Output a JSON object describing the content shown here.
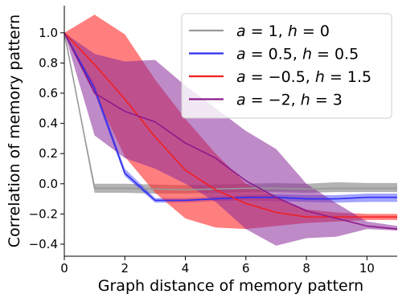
{
  "chart_data": {
    "type": "line",
    "title": "",
    "xlabel": "Graph distance of memory pattern",
    "ylabel": "Correlation of memory pattern",
    "xlim": [
      0,
      11
    ],
    "ylim": [
      -0.48,
      1.18
    ],
    "x_ticks": [
      0,
      2,
      4,
      6,
      8,
      10
    ],
    "y_ticks": [
      1.0,
      0.8,
      0.6,
      0.4,
      0.2,
      0.0,
      -0.2,
      -0.4
    ],
    "grid": false,
    "legend_position": "top-right",
    "x": [
      0,
      1,
      2,
      3,
      4,
      5,
      6,
      7,
      8,
      9,
      10,
      11
    ],
    "series": [
      {
        "name": "a = 1, h = 0",
        "legend_label": {
          "a": "1",
          "h": "0"
        },
        "color": "#999999",
        "band_color": "#808080",
        "band_opacity": 0.6,
        "values": [
          1.0,
          -0.03,
          -0.03,
          -0.035,
          -0.04,
          -0.035,
          -0.03,
          -0.03,
          -0.035,
          -0.03,
          -0.03,
          -0.03
        ],
        "lower": [
          1.0,
          -0.06,
          -0.06,
          -0.065,
          -0.065,
          -0.06,
          -0.055,
          -0.055,
          -0.06,
          -0.055,
          -0.055,
          -0.055
        ],
        "upper": [
          1.0,
          0.0,
          0.0,
          -0.005,
          -0.01,
          -0.005,
          0.0,
          0.005,
          0.0,
          0.01,
          0.005,
          0.005
        ]
      },
      {
        "name": "a = 0.5, h = 0.5",
        "legend_label": {
          "a": "0.5",
          "h": "0.5"
        },
        "color": "#2e2ef0",
        "band_color": "#3333ff",
        "band_opacity": 0.45,
        "values": [
          1.0,
          0.63,
          0.07,
          -0.11,
          -0.11,
          -0.1,
          -0.09,
          -0.09,
          -0.1,
          -0.1,
          -0.09,
          -0.09
        ],
        "lower": [
          1.0,
          0.6,
          0.05,
          -0.125,
          -0.125,
          -0.115,
          -0.11,
          -0.115,
          -0.12,
          -0.125,
          -0.12,
          -0.12
        ],
        "upper": [
          1.0,
          0.66,
          0.1,
          -0.095,
          -0.095,
          -0.085,
          -0.075,
          -0.07,
          -0.075,
          -0.075,
          -0.065,
          -0.065
        ]
      },
      {
        "name": "a = −0.5, h = 1.5",
        "legend_label": {
          "a": "−0.5",
          "h": "1.5"
        },
        "color": "#f21e1e",
        "band_color": "#ff2a2a",
        "band_opacity": 0.6,
        "values": [
          1.0,
          0.79,
          0.56,
          0.31,
          0.09,
          -0.04,
          -0.13,
          -0.19,
          -0.22,
          -0.22,
          -0.22,
          -0.22
        ],
        "lower": [
          1.0,
          0.6,
          0.18,
          -0.06,
          -0.23,
          -0.29,
          -0.3,
          -0.28,
          -0.26,
          -0.25,
          -0.24,
          -0.24
        ],
        "upper": [
          1.0,
          1.12,
          0.99,
          0.69,
          0.43,
          0.2,
          0.0,
          -0.09,
          -0.17,
          -0.19,
          -0.2,
          -0.2
        ]
      },
      {
        "name": "a = −2, h = 3",
        "legend_label": {
          "a": "−2",
          "h": "3"
        },
        "color": "#8b1a8b",
        "band_color": "#8b2a9b",
        "band_opacity": 0.55,
        "values": [
          1.0,
          0.6,
          0.48,
          0.41,
          0.27,
          0.17,
          0.02,
          -0.09,
          -0.18,
          -0.23,
          -0.28,
          -0.3
        ],
        "lower": [
          1.0,
          0.32,
          0.17,
          0.1,
          0.0,
          -0.12,
          -0.3,
          -0.41,
          -0.36,
          -0.35,
          -0.3,
          -0.31
        ],
        "upper": [
          1.0,
          0.86,
          0.81,
          0.82,
          0.65,
          0.5,
          0.35,
          0.23,
          0.0,
          -0.13,
          -0.25,
          -0.28
        ]
      }
    ]
  }
}
